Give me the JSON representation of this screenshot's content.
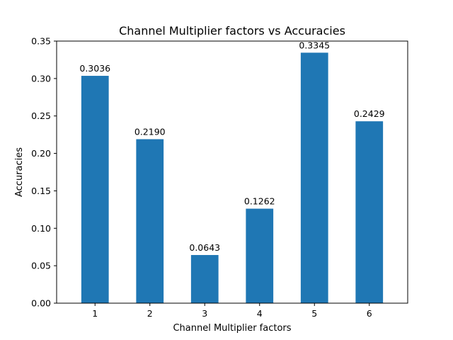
{
  "chart_data": {
    "type": "bar",
    "title": "Channel Multiplier factors vs Accuracies",
    "xlabel": "Channel Multiplier factors",
    "ylabel": "Accuracies",
    "categories": [
      "1",
      "2",
      "3",
      "4",
      "5",
      "6"
    ],
    "values": [
      0.3036,
      0.219,
      0.0643,
      0.1262,
      0.3345,
      0.2429
    ],
    "data_labels": [
      "0.3036",
      "0.2190",
      "0.0643",
      "0.1262",
      "0.3345",
      "0.2429"
    ],
    "ylim": [
      0,
      0.35
    ],
    "yticks": [
      0.0,
      0.05,
      0.1,
      0.15,
      0.2,
      0.25,
      0.3,
      0.35
    ],
    "ytick_labels": [
      "0.00",
      "0.05",
      "0.10",
      "0.15",
      "0.20",
      "0.25",
      "0.30",
      "0.35"
    ],
    "bar_color": "#1f77b4",
    "grid": false,
    "legend": "none"
  }
}
